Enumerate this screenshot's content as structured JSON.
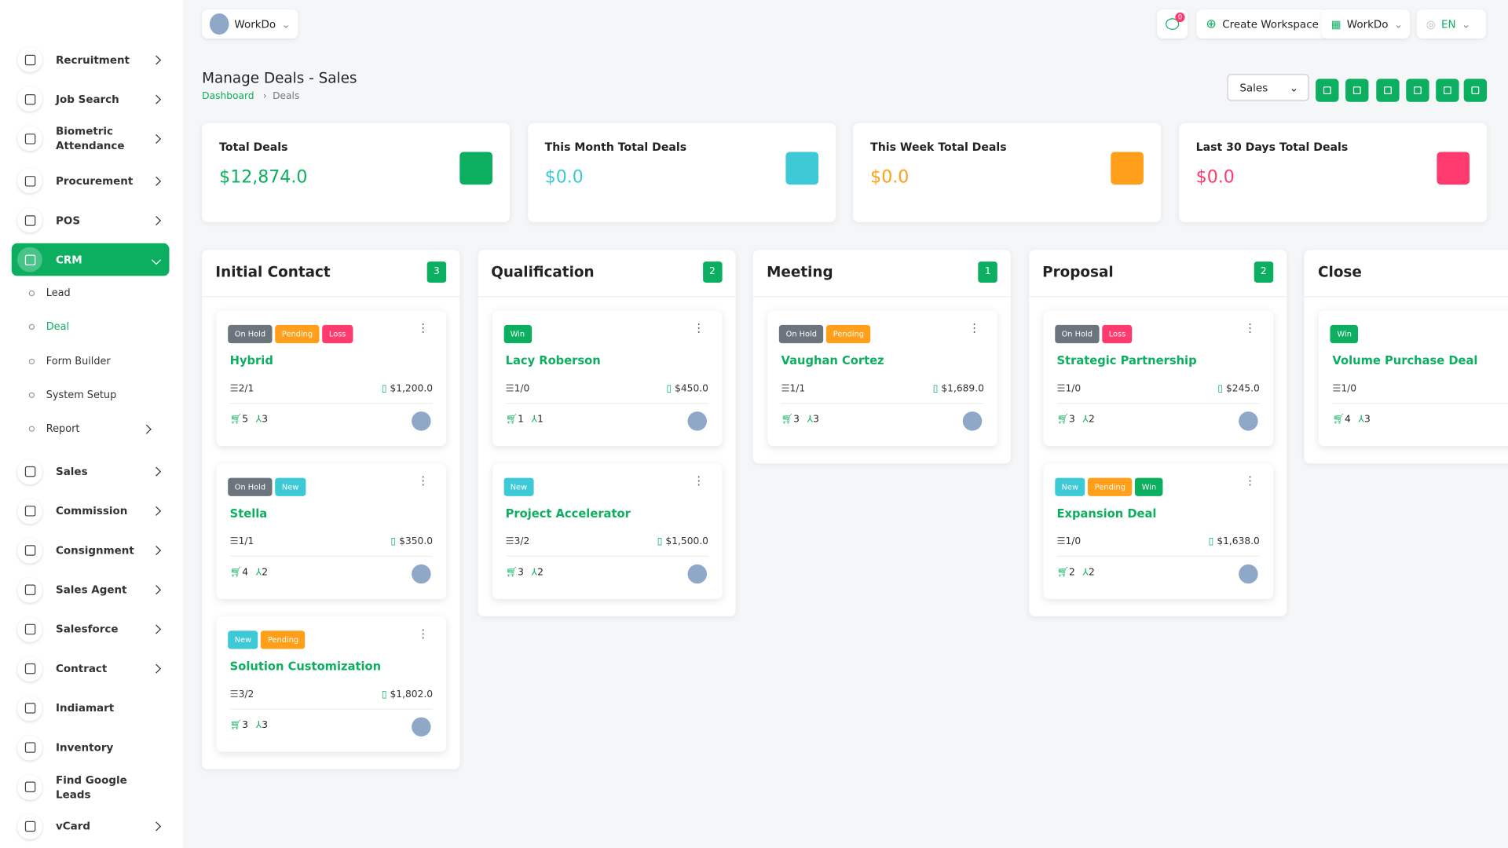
{
  "header": {
    "workspace": "WorkDo",
    "notification_count": "0",
    "create_workspace": "Create Workspace",
    "workspace_menu": "WorkDo",
    "language": "EN"
  },
  "sidebar": {
    "items": [
      {
        "label": "Recruitment",
        "arrow": true
      },
      {
        "label": "Job Search",
        "arrow": true
      },
      {
        "label": "Biometric Attendance",
        "arrow": true
      },
      {
        "label": "Procurement",
        "arrow": true
      },
      {
        "label": "POS",
        "arrow": true
      },
      {
        "label": "CRM",
        "arrow": true,
        "active": true,
        "children": [
          {
            "label": "Lead"
          },
          {
            "label": "Deal",
            "active": true
          },
          {
            "label": "Form Builder"
          },
          {
            "label": "System Setup"
          },
          {
            "label": "Report",
            "arrow": true
          }
        ]
      },
      {
        "label": "Sales",
        "arrow": true
      },
      {
        "label": "Commission",
        "arrow": true
      },
      {
        "label": "Consignment",
        "arrow": true
      },
      {
        "label": "Sales Agent",
        "arrow": true
      },
      {
        "label": "Salesforce",
        "arrow": true
      },
      {
        "label": "Contract",
        "arrow": true
      },
      {
        "label": "Indiamart",
        "arrow": false
      },
      {
        "label": "Inventory",
        "arrow": false
      },
      {
        "label": "Find Google Leads",
        "arrow": false
      },
      {
        "label": "vCard",
        "arrow": true
      }
    ]
  },
  "page": {
    "title": "Manage Deals - Sales",
    "breadcrumb": [
      "Dashboard",
      "Deals"
    ],
    "pipeline": "Sales"
  },
  "stats": [
    {
      "label": "Total Deals",
      "value": "$12,874.0",
      "color": "#0caf60"
    },
    {
      "label": "This Month Total Deals",
      "value": "$0.0",
      "color": "#3ec9d6"
    },
    {
      "label": "This Week Total Deals",
      "value": "$0.0",
      "color": "#ff9f1a"
    },
    {
      "label": "Last 30 Days Total Deals",
      "value": "$0.0",
      "color": "#ff3a6e"
    }
  ],
  "columns": [
    {
      "name": "Initial Contact",
      "count": "3",
      "cards": [
        {
          "badges": [
            "On Hold",
            "Pending",
            "Loss"
          ],
          "title": "Hybrid",
          "tasks": "2/1",
          "amount": "$1,200.0",
          "products": "5",
          "sources": "3"
        },
        {
          "badges": [
            "On Hold",
            "New"
          ],
          "title": "Stella",
          "tasks": "1/1",
          "amount": "$350.0",
          "products": "4",
          "sources": "2"
        },
        {
          "badges": [
            "New",
            "Pending"
          ],
          "title": "Solution Customization",
          "tasks": "3/2",
          "amount": "$1,802.0",
          "products": "3",
          "sources": "3"
        }
      ]
    },
    {
      "name": "Qualification",
      "count": "2",
      "cards": [
        {
          "badges": [
            "Win"
          ],
          "title": "Lacy Roberson",
          "tasks": "1/0",
          "amount": "$450.0",
          "products": "1",
          "sources": "1"
        },
        {
          "badges": [
            "New"
          ],
          "title": "Project Accelerator",
          "tasks": "3/2",
          "amount": "$1,500.0",
          "products": "3",
          "sources": "2"
        }
      ]
    },
    {
      "name": "Meeting",
      "count": "1",
      "cards": [
        {
          "badges": [
            "On Hold",
            "Pending"
          ],
          "title": "Vaughan Cortez",
          "tasks": "1/1",
          "amount": "$1,689.0",
          "products": "3",
          "sources": "3"
        }
      ]
    },
    {
      "name": "Proposal",
      "count": "2",
      "cards": [
        {
          "badges": [
            "On Hold",
            "Loss"
          ],
          "title": "Strategic Partnership",
          "tasks": "1/0",
          "amount": "$245.0",
          "products": "3",
          "sources": "2"
        },
        {
          "badges": [
            "New",
            "Pending",
            "Win"
          ],
          "title": "Expansion Deal",
          "tasks": "1/0",
          "amount": "$1,638.0",
          "products": "2",
          "sources": "2"
        }
      ]
    },
    {
      "name": "Close",
      "cards": [
        {
          "badges": [
            "Win"
          ],
          "title": "Volume Purchase Deal",
          "tasks": "1/0",
          "products": "4",
          "sources": "3"
        }
      ]
    }
  ]
}
